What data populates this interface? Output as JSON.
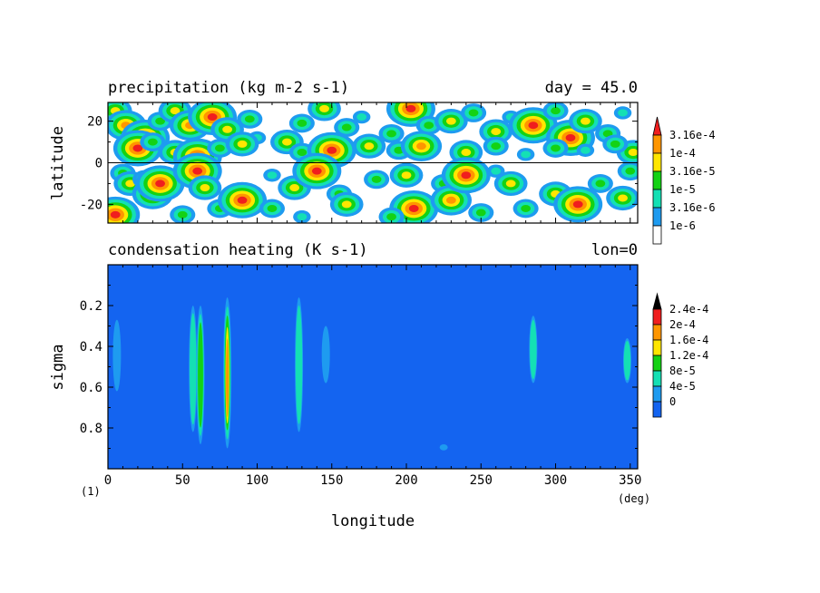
{
  "chart_data": [
    {
      "type": "heatmap",
      "title": "precipitation (kg m-2 s-1)",
      "annotation": "day = 45.0",
      "ylabel": "latitude",
      "xlim": [
        0,
        355
      ],
      "ylim": [
        -29,
        29
      ],
      "yticks": [
        "20",
        "0",
        "-20"
      ],
      "colorbar": [
        "3.16e-4",
        "1e-4",
        "3.16e-5",
        "1e-5",
        "3.16e-6",
        "1e-6"
      ],
      "colors": [
        "#ffffff",
        "#1e9bf0",
        "#14e0b4",
        "#14d214",
        "#ffe600",
        "#ff9600",
        "#f01e1e"
      ],
      "cells": [
        [
          5,
          25,
          4
        ],
        [
          12,
          18,
          5
        ],
        [
          25,
          12,
          6
        ],
        [
          35,
          20,
          3
        ],
        [
          45,
          25,
          4
        ],
        [
          55,
          18,
          5
        ],
        [
          70,
          22,
          6
        ],
        [
          80,
          16,
          4
        ],
        [
          95,
          21,
          3
        ],
        [
          100,
          12,
          2
        ],
        [
          120,
          10,
          4
        ],
        [
          130,
          19,
          3
        ],
        [
          145,
          26,
          4
        ],
        [
          160,
          17,
          3
        ],
        [
          170,
          22,
          2
        ],
        [
          190,
          14,
          3
        ],
        [
          203,
          26,
          6
        ],
        [
          215,
          18,
          3
        ],
        [
          230,
          20,
          4
        ],
        [
          245,
          24,
          3
        ],
        [
          260,
          15,
          4
        ],
        [
          270,
          22,
          2
        ],
        [
          285,
          18,
          6
        ],
        [
          300,
          25,
          3
        ],
        [
          310,
          12,
          6
        ],
        [
          320,
          20,
          4
        ],
        [
          335,
          14,
          3
        ],
        [
          345,
          24,
          2
        ],
        [
          352,
          5,
          4
        ],
        [
          20,
          7,
          6
        ],
        [
          30,
          10,
          3
        ],
        [
          45,
          5,
          4
        ],
        [
          60,
          3,
          6
        ],
        [
          75,
          7,
          3
        ],
        [
          90,
          9,
          4
        ],
        [
          130,
          5,
          3
        ],
        [
          150,
          6,
          6
        ],
        [
          175,
          8,
          4
        ],
        [
          195,
          6,
          3
        ],
        [
          210,
          8,
          5
        ],
        [
          240,
          5,
          4
        ],
        [
          260,
          8,
          3
        ],
        [
          280,
          4,
          2
        ],
        [
          300,
          7,
          3
        ],
        [
          320,
          6,
          2
        ],
        [
          340,
          9,
          3
        ],
        [
          10,
          -5,
          3
        ],
        [
          15,
          -10,
          4
        ],
        [
          25,
          -8,
          3
        ],
        [
          30,
          -15,
          5
        ],
        [
          35,
          -10,
          6
        ],
        [
          60,
          -4,
          6
        ],
        [
          65,
          -12,
          4
        ],
        [
          75,
          -22,
          3
        ],
        [
          90,
          -18,
          6
        ],
        [
          110,
          -22,
          3
        ],
        [
          125,
          -12,
          4
        ],
        [
          140,
          -4,
          6
        ],
        [
          155,
          -15,
          3
        ],
        [
          160,
          -20,
          4
        ],
        [
          180,
          -8,
          3
        ],
        [
          200,
          -6,
          4
        ],
        [
          205,
          -22,
          6
        ],
        [
          225,
          -10,
          3
        ],
        [
          230,
          -18,
          5
        ],
        [
          240,
          -6,
          6
        ],
        [
          250,
          -24,
          3
        ],
        [
          270,
          -10,
          4
        ],
        [
          280,
          -22,
          3
        ],
        [
          300,
          -15,
          4
        ],
        [
          315,
          -20,
          6
        ],
        [
          330,
          -10,
          3
        ],
        [
          345,
          -17,
          4
        ],
        [
          5,
          -25,
          6
        ],
        [
          50,
          -25,
          3
        ],
        [
          130,
          -26,
          2
        ],
        [
          190,
          -26,
          3
        ],
        [
          260,
          -4,
          2
        ],
        [
          110,
          -6,
          2
        ],
        [
          350,
          -4,
          3
        ]
      ]
    },
    {
      "type": "heatmap",
      "title": "condensation heating (K s-1)",
      "annotation": "lon=0",
      "xlabel": "longitude",
      "ylabel": "sigma",
      "xunit": "(deg)",
      "corner_label": "(1)",
      "xlim": [
        0,
        355
      ],
      "ylim": [
        0,
        1
      ],
      "xticks": [
        "0",
        "50",
        "100",
        "150",
        "200",
        "250",
        "300",
        "350"
      ],
      "yticks": [
        "0.2",
        "0.4",
        "0.6",
        "0.8"
      ],
      "colorbar": [
        "2.4e-4",
        "2e-4",
        "1.6e-4",
        "1.2e-4",
        "8e-5",
        "4e-5",
        "0"
      ],
      "colors": [
        "#1464f0",
        "#1e9bf0",
        "#14e0b4",
        "#14d214",
        "#ffe600",
        "#ff9600",
        "#f01e1e"
      ],
      "plumes": [
        [
          6,
          0.27,
          0.62,
          1
        ],
        [
          57,
          0.2,
          0.82,
          2
        ],
        [
          62,
          0.2,
          0.88,
          3
        ],
        [
          80,
          0.16,
          0.9,
          5
        ],
        [
          128,
          0.16,
          0.82,
          2
        ],
        [
          146,
          0.3,
          0.58,
          1
        ],
        [
          225,
          0.88,
          0.91,
          1
        ],
        [
          285,
          0.25,
          0.58,
          2
        ],
        [
          348,
          0.36,
          0.58,
          2
        ]
      ]
    }
  ]
}
